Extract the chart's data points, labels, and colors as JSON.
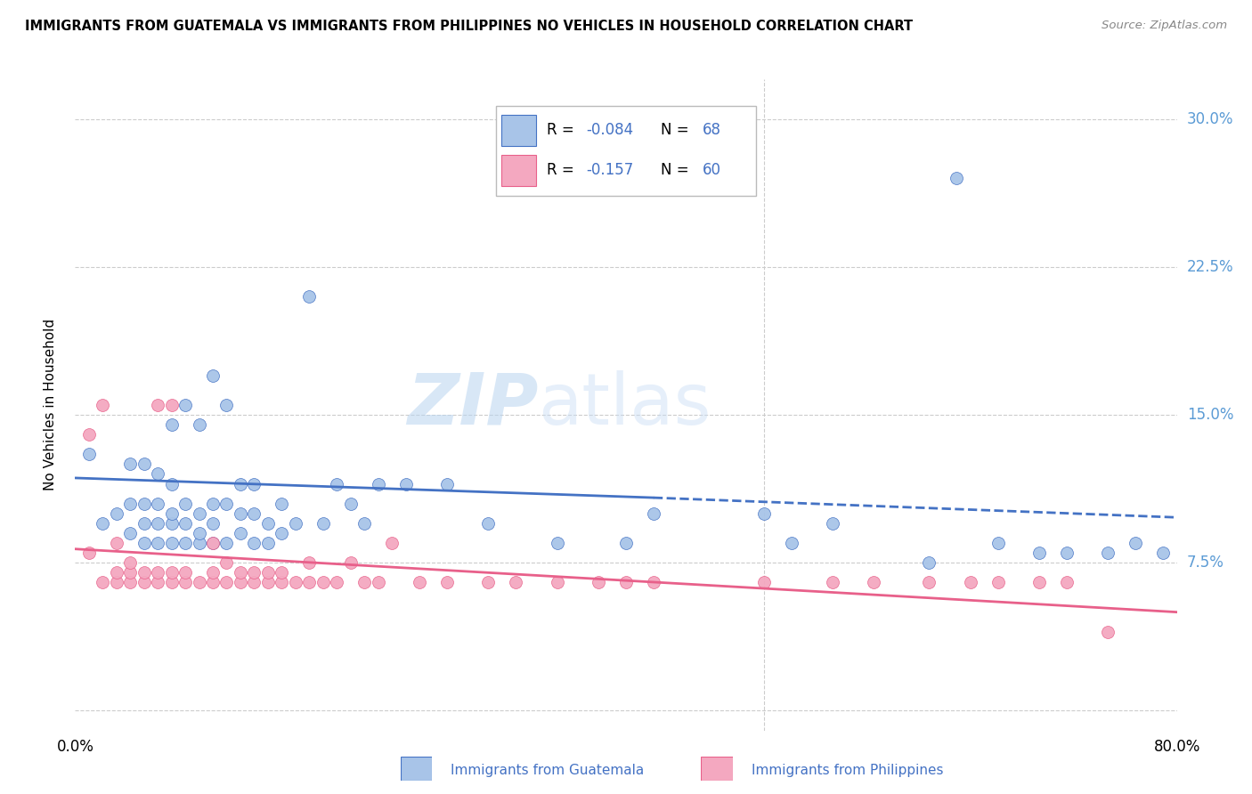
{
  "title": "IMMIGRANTS FROM GUATEMALA VS IMMIGRANTS FROM PHILIPPINES NO VEHICLES IN HOUSEHOLD CORRELATION CHART",
  "source": "Source: ZipAtlas.com",
  "ylabel": "No Vehicles in Household",
  "yticks": [
    0.0,
    0.075,
    0.15,
    0.225,
    0.3
  ],
  "ytick_labels": [
    "",
    "7.5%",
    "15.0%",
    "22.5%",
    "30.0%"
  ],
  "xlim": [
    0.0,
    0.8
  ],
  "ylim": [
    -0.01,
    0.32
  ],
  "color_guatemala": "#A8C4E8",
  "color_philippines": "#F4A8C0",
  "color_line_guatemala": "#4472C4",
  "color_line_philippines": "#E8608A",
  "color_axis_right": "#5B9BD5",
  "watermark_text": "ZIP",
  "watermark_text2": "atlas",
  "guatemala_x": [
    0.01,
    0.02,
    0.03,
    0.04,
    0.04,
    0.04,
    0.05,
    0.05,
    0.05,
    0.05,
    0.06,
    0.06,
    0.06,
    0.06,
    0.07,
    0.07,
    0.07,
    0.07,
    0.07,
    0.08,
    0.08,
    0.08,
    0.08,
    0.09,
    0.09,
    0.09,
    0.09,
    0.1,
    0.1,
    0.1,
    0.1,
    0.11,
    0.11,
    0.11,
    0.12,
    0.12,
    0.12,
    0.13,
    0.13,
    0.13,
    0.14,
    0.14,
    0.15,
    0.15,
    0.16,
    0.17,
    0.18,
    0.19,
    0.2,
    0.21,
    0.22,
    0.24,
    0.27,
    0.3,
    0.35,
    0.4,
    0.42,
    0.5,
    0.52,
    0.55,
    0.62,
    0.64,
    0.67,
    0.7,
    0.72,
    0.75,
    0.77,
    0.79
  ],
  "guatemala_y": [
    0.13,
    0.095,
    0.1,
    0.09,
    0.105,
    0.125,
    0.085,
    0.095,
    0.105,
    0.125,
    0.085,
    0.095,
    0.105,
    0.12,
    0.085,
    0.095,
    0.1,
    0.115,
    0.145,
    0.085,
    0.095,
    0.105,
    0.155,
    0.085,
    0.09,
    0.1,
    0.145,
    0.085,
    0.095,
    0.105,
    0.17,
    0.085,
    0.105,
    0.155,
    0.09,
    0.1,
    0.115,
    0.085,
    0.1,
    0.115,
    0.085,
    0.095,
    0.09,
    0.105,
    0.095,
    0.21,
    0.095,
    0.115,
    0.105,
    0.095,
    0.115,
    0.115,
    0.115,
    0.095,
    0.085,
    0.085,
    0.1,
    0.1,
    0.085,
    0.095,
    0.075,
    0.27,
    0.085,
    0.08,
    0.08,
    0.08,
    0.085,
    0.08
  ],
  "philippines_x": [
    0.01,
    0.01,
    0.02,
    0.02,
    0.03,
    0.03,
    0.03,
    0.04,
    0.04,
    0.04,
    0.05,
    0.05,
    0.06,
    0.06,
    0.06,
    0.07,
    0.07,
    0.07,
    0.08,
    0.08,
    0.09,
    0.1,
    0.1,
    0.1,
    0.11,
    0.11,
    0.12,
    0.12,
    0.13,
    0.13,
    0.14,
    0.14,
    0.15,
    0.15,
    0.16,
    0.17,
    0.17,
    0.18,
    0.19,
    0.2,
    0.21,
    0.22,
    0.23,
    0.25,
    0.27,
    0.3,
    0.32,
    0.35,
    0.38,
    0.4,
    0.42,
    0.5,
    0.55,
    0.58,
    0.62,
    0.65,
    0.67,
    0.7,
    0.72,
    0.75
  ],
  "philippines_y": [
    0.08,
    0.14,
    0.065,
    0.155,
    0.065,
    0.07,
    0.085,
    0.065,
    0.07,
    0.075,
    0.065,
    0.07,
    0.065,
    0.07,
    0.155,
    0.065,
    0.07,
    0.155,
    0.065,
    0.07,
    0.065,
    0.065,
    0.07,
    0.085,
    0.065,
    0.075,
    0.065,
    0.07,
    0.065,
    0.07,
    0.065,
    0.07,
    0.065,
    0.07,
    0.065,
    0.065,
    0.075,
    0.065,
    0.065,
    0.075,
    0.065,
    0.065,
    0.085,
    0.065,
    0.065,
    0.065,
    0.065,
    0.065,
    0.065,
    0.065,
    0.065,
    0.065,
    0.065,
    0.065,
    0.065,
    0.065,
    0.065,
    0.065,
    0.065,
    0.04
  ],
  "g_line_x0": 0.0,
  "g_line_y0": 0.118,
  "g_line_x1_solid": 0.42,
  "g_line_y1_solid": 0.108,
  "g_line_x1_dash": 0.8,
  "g_line_y1_dash": 0.098,
  "p_line_x0": 0.0,
  "p_line_y0": 0.082,
  "p_line_x1": 0.8,
  "p_line_y1": 0.05
}
